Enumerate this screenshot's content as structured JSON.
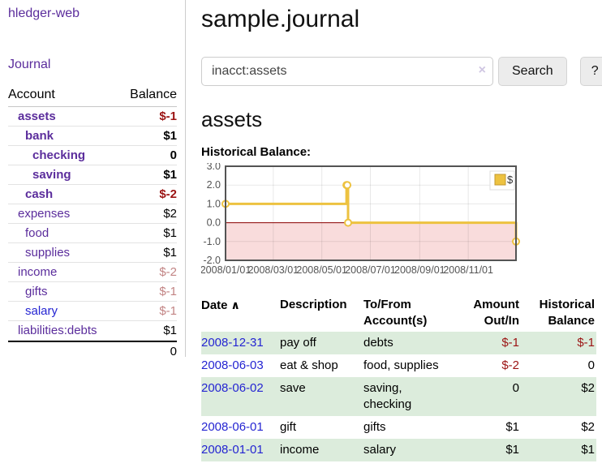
{
  "app": {
    "title": "hledger-web"
  },
  "colors": {
    "link_purple": "#5b2d9c",
    "link_blue": "#2525d2",
    "negative_strong": "#9b1313",
    "negative_soft": "#c28484",
    "row_stripe_green": "#dcecdc",
    "chart_series_yellow": "#edc240",
    "chart_negative_region": "#f9dcdc",
    "chart_zero_line": "#8b0000"
  },
  "sidebar": {
    "journal_link": "Journal",
    "table": {
      "account_header": "Account",
      "balance_header": "Balance",
      "accounts": [
        {
          "name": "assets",
          "balance": "$-1"
        },
        {
          "name": "bank",
          "balance": "$1"
        },
        {
          "name": "checking",
          "balance": "0"
        },
        {
          "name": "saving",
          "balance": "$1"
        },
        {
          "name": "cash",
          "balance": "$-2"
        },
        {
          "name": "expenses",
          "balance": "$2"
        },
        {
          "name": "food",
          "balance": "$1"
        },
        {
          "name": "supplies",
          "balance": "$1"
        },
        {
          "name": "income",
          "balance": "$-2"
        },
        {
          "name": "gifts",
          "balance": "$-1"
        },
        {
          "name": "salary",
          "balance": "$-1"
        },
        {
          "name": "liabilities:debts",
          "balance": "$1"
        }
      ],
      "total": "0"
    }
  },
  "main": {
    "title": "sample.journal",
    "search": {
      "value": "inacct:assets",
      "clear_icon": "×",
      "button": "Search",
      "help": "?"
    },
    "account_heading": "assets",
    "chart_label": "Historical Balance:"
  },
  "chart_data": {
    "type": "line",
    "title": "Historical Balance:",
    "step": true,
    "series": [
      {
        "name": "$",
        "color": "#edc240",
        "points": [
          [
            "2008-01-01",
            1
          ],
          [
            "2008-06-01",
            2
          ],
          [
            "2008-06-02",
            2
          ],
          [
            "2008-06-03",
            0
          ],
          [
            "2008-12-31",
            -1
          ]
        ]
      }
    ],
    "xlim": [
      "2008-01-01",
      "2008-12-31"
    ],
    "ylim": [
      -2,
      3
    ],
    "x_ticks": [
      "2008/01/01",
      "2008/03/01",
      "2008/05/01",
      "2008/07/01",
      "2008/09/01",
      "2008/11/01"
    ],
    "y_ticks": [
      3.0,
      2.0,
      1.0,
      0.0,
      -1.0,
      -2.0
    ],
    "legend_position": "top-right",
    "grid": true,
    "negative_region_color": "#f9dcdc",
    "zero_line_color": "#8b0000"
  },
  "register": {
    "headers": {
      "date": "Date",
      "sort_icon": "∧",
      "description": "Description",
      "account_line1": "To/From",
      "account_line2": "Account(s)",
      "amount_line1": "Amount",
      "amount_line2": "Out/In",
      "balance_line1": "Historical",
      "balance_line2": "Balance"
    },
    "rows": [
      {
        "date": "2008-12-31",
        "description": "pay off",
        "accounts": "debts",
        "amount": "$-1",
        "balance": "$-1"
      },
      {
        "date": "2008-06-03",
        "description": "eat & shop",
        "accounts": "food, supplies",
        "amount": "$-2",
        "balance": "0"
      },
      {
        "date": "2008-06-02",
        "description": "save",
        "accounts": "saving, checking",
        "amount": "0",
        "balance": "$2"
      },
      {
        "date": "2008-06-01",
        "description": "gift",
        "accounts": "gifts",
        "amount": "$1",
        "balance": "$2"
      },
      {
        "date": "2008-01-01",
        "description": "income",
        "accounts": "salary",
        "amount": "$1",
        "balance": "$1"
      }
    ]
  }
}
